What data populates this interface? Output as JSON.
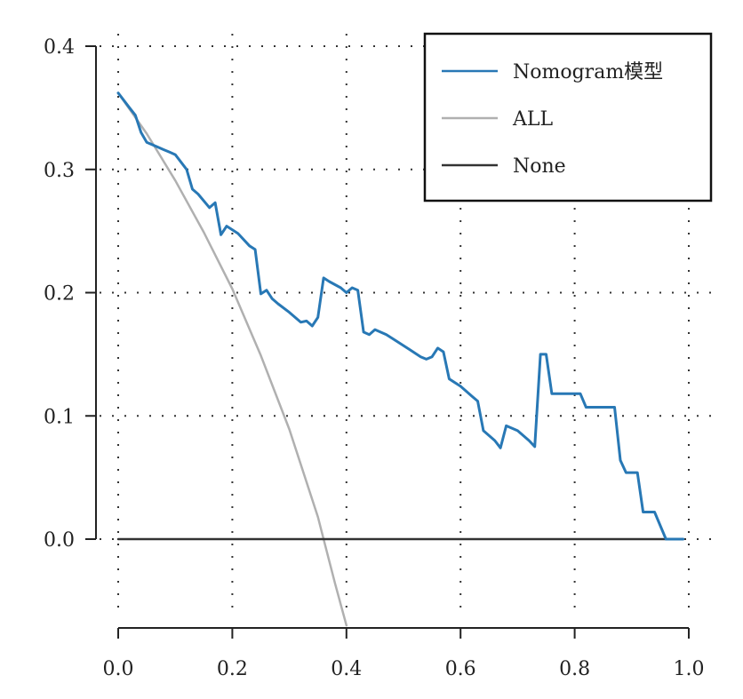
{
  "chart_data": {
    "type": "line",
    "title": "",
    "xlabel": "",
    "ylabel": "",
    "xlim": [
      0.0,
      1.0
    ],
    "ylim": [
      -0.07,
      0.4
    ],
    "grid": true,
    "legend_position": "top-right",
    "x_ticks": [
      "0.0",
      "0.2",
      "0.4",
      "0.6",
      "0.8",
      "1.0"
    ],
    "y_ticks": [
      "0.4",
      "0.3",
      "0.2",
      "0.1",
      "0.0"
    ],
    "x_tick_values": [
      0.0,
      0.2,
      0.4,
      0.6,
      0.8,
      1.0
    ],
    "y_tick_values": [
      0.4,
      0.3,
      0.2,
      0.1,
      0.0
    ],
    "series": [
      {
        "name": "Nomogram模型",
        "color": "#2878b5",
        "points": [
          [
            0.0,
            0.362
          ],
          [
            0.02,
            0.35
          ],
          [
            0.03,
            0.344
          ],
          [
            0.04,
            0.33
          ],
          [
            0.05,
            0.322
          ],
          [
            0.06,
            0.32
          ],
          [
            0.07,
            0.318
          ],
          [
            0.08,
            0.316
          ],
          [
            0.09,
            0.314
          ],
          [
            0.1,
            0.312
          ],
          [
            0.11,
            0.306
          ],
          [
            0.12,
            0.3
          ],
          [
            0.13,
            0.284
          ],
          [
            0.14,
            0.28
          ],
          [
            0.16,
            0.269
          ],
          [
            0.17,
            0.273
          ],
          [
            0.18,
            0.247
          ],
          [
            0.19,
            0.254
          ],
          [
            0.21,
            0.248
          ],
          [
            0.23,
            0.238
          ],
          [
            0.24,
            0.235
          ],
          [
            0.25,
            0.199
          ],
          [
            0.26,
            0.202
          ],
          [
            0.27,
            0.195
          ],
          [
            0.28,
            0.191
          ],
          [
            0.3,
            0.184
          ],
          [
            0.32,
            0.176
          ],
          [
            0.33,
            0.177
          ],
          [
            0.34,
            0.173
          ],
          [
            0.35,
            0.18
          ],
          [
            0.36,
            0.212
          ],
          [
            0.37,
            0.209
          ],
          [
            0.39,
            0.204
          ],
          [
            0.4,
            0.2
          ],
          [
            0.41,
            0.204
          ],
          [
            0.42,
            0.202
          ],
          [
            0.43,
            0.168
          ],
          [
            0.44,
            0.166
          ],
          [
            0.45,
            0.17
          ],
          [
            0.47,
            0.166
          ],
          [
            0.49,
            0.16
          ],
          [
            0.51,
            0.154
          ],
          [
            0.53,
            0.148
          ],
          [
            0.54,
            0.146
          ],
          [
            0.55,
            0.148
          ],
          [
            0.56,
            0.155
          ],
          [
            0.57,
            0.152
          ],
          [
            0.58,
            0.13
          ],
          [
            0.6,
            0.124
          ],
          [
            0.62,
            0.116
          ],
          [
            0.63,
            0.112
          ],
          [
            0.64,
            0.088
          ],
          [
            0.66,
            0.08
          ],
          [
            0.67,
            0.074
          ],
          [
            0.68,
            0.092
          ],
          [
            0.7,
            0.088
          ],
          [
            0.72,
            0.08
          ],
          [
            0.73,
            0.075
          ],
          [
            0.74,
            0.15
          ],
          [
            0.75,
            0.15
          ],
          [
            0.76,
            0.118
          ],
          [
            0.79,
            0.118
          ],
          [
            0.81,
            0.118
          ],
          [
            0.82,
            0.107
          ],
          [
            0.84,
            0.107
          ],
          [
            0.87,
            0.107
          ],
          [
            0.88,
            0.064
          ],
          [
            0.89,
            0.054
          ],
          [
            0.91,
            0.054
          ],
          [
            0.92,
            0.022
          ],
          [
            0.94,
            0.022
          ],
          [
            0.96,
            0.0
          ],
          [
            0.99,
            0.0
          ]
        ]
      },
      {
        "name": "ALL",
        "color": "#b0b0b0",
        "points": [
          [
            0.0,
            0.362
          ],
          [
            0.05,
            0.329
          ],
          [
            0.1,
            0.291
          ],
          [
            0.15,
            0.249
          ],
          [
            0.2,
            0.203
          ],
          [
            0.25,
            0.149
          ],
          [
            0.3,
            0.089
          ],
          [
            0.35,
            0.018
          ],
          [
            0.36,
            0.0
          ],
          [
            0.38,
            -0.036
          ],
          [
            0.4,
            -0.07
          ]
        ]
      },
      {
        "name": "None",
        "color": "#333333",
        "points": [
          [
            0.0,
            0.0
          ],
          [
            0.99,
            0.0
          ]
        ]
      }
    ]
  }
}
